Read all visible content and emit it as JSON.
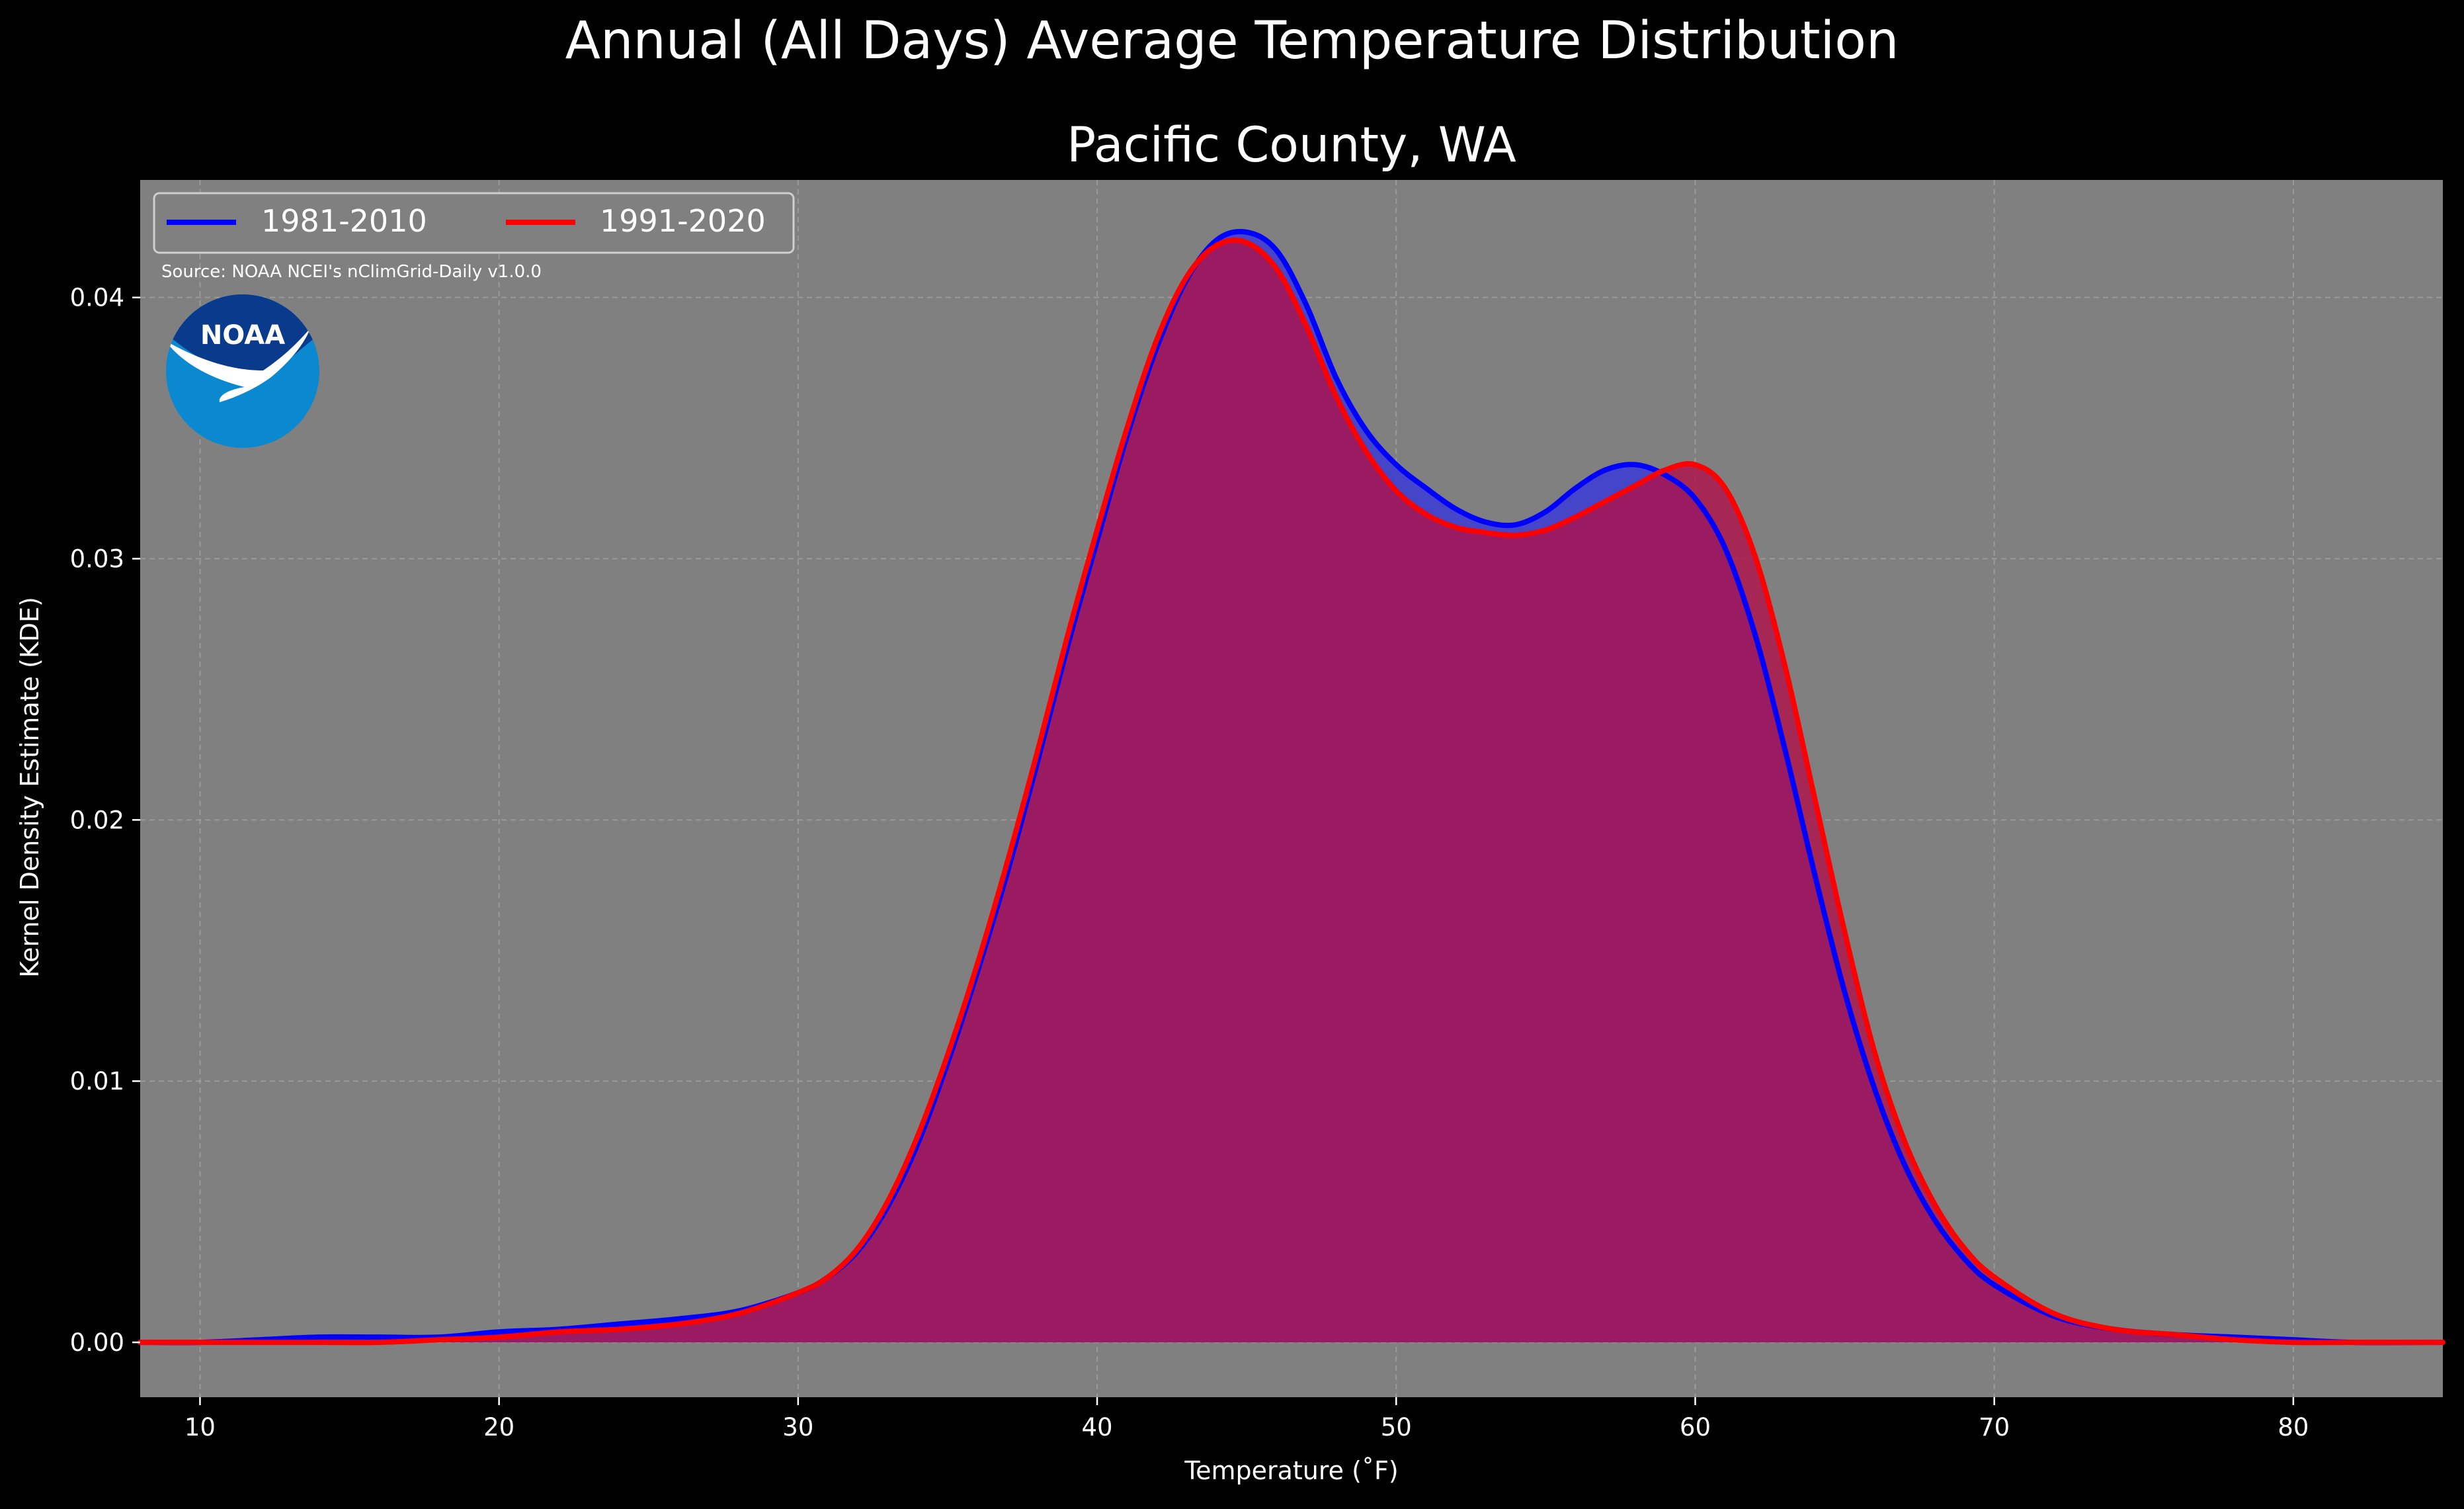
{
  "suptitle": "Annual (All Days) Average Temperature Distribution",
  "chart_data": {
    "type": "area",
    "title": "Pacific County, WA",
    "xlabel": "Temperature ($^\\circ$F)",
    "xlabel_display": "Temperature ($^\\circ$F)",
    "ylabel": "Kernel Density Estimate (KDE)",
    "xlim": [
      8,
      85
    ],
    "ylim": [
      -0.0021,
      0.0445
    ],
    "x_ticks": [
      10,
      20,
      30,
      40,
      50,
      60,
      70,
      80
    ],
    "y_ticks": [
      0.0,
      0.01,
      0.02,
      0.03,
      0.04
    ],
    "y_tick_labels": [
      "0.00",
      "0.01",
      "0.02",
      "0.03",
      "0.04"
    ],
    "grid": true,
    "legend_position": "top-left",
    "series": [
      {
        "name": "1981-2010",
        "color": "#0000ff",
        "fill_color": "#3b3bd6",
        "x": [
          8,
          10,
          12,
          14,
          16,
          18,
          20,
          22,
          24,
          26,
          28,
          30,
          31,
          32,
          33,
          34,
          35,
          36,
          37,
          38,
          39,
          40,
          41,
          42,
          43,
          44,
          45,
          46,
          47,
          48,
          49,
          50,
          51,
          52,
          53,
          54,
          55,
          56,
          57,
          58,
          59,
          60,
          61,
          62,
          63,
          64,
          65,
          66,
          67,
          68,
          69,
          70,
          72,
          74,
          76,
          78,
          80,
          82,
          85
        ],
        "y": [
          0.0,
          0.0,
          0.0001,
          0.0002,
          0.0002,
          0.0002,
          0.0004,
          0.0005,
          0.0007,
          0.0009,
          0.0012,
          0.0019,
          0.0025,
          0.0035,
          0.0052,
          0.0076,
          0.0107,
          0.0142,
          0.018,
          0.0222,
          0.0266,
          0.0307,
          0.0347,
          0.0381,
          0.0407,
          0.0422,
          0.0425,
          0.0418,
          0.0397,
          0.0369,
          0.0349,
          0.0336,
          0.0327,
          0.0319,
          0.0314,
          0.0313,
          0.0318,
          0.0327,
          0.0334,
          0.0336,
          0.0332,
          0.0323,
          0.0304,
          0.0271,
          0.0227,
          0.0179,
          0.0134,
          0.0097,
          0.0068,
          0.0047,
          0.0032,
          0.0022,
          0.001,
          0.0005,
          0.0003,
          0.0002,
          0.0001,
          0.0,
          0.0
        ]
      },
      {
        "name": "1991-2020",
        "color": "#ff0000",
        "fill_color": "#b01048",
        "x": [
          8,
          10,
          12,
          14,
          16,
          18,
          20,
          22,
          24,
          26,
          28,
          30,
          31,
          32,
          33,
          34,
          35,
          36,
          37,
          38,
          39,
          40,
          41,
          42,
          43,
          44,
          45,
          46,
          47,
          48,
          49,
          50,
          51,
          52,
          53,
          54,
          55,
          56,
          57,
          58,
          59,
          60,
          61,
          62,
          63,
          64,
          65,
          66,
          67,
          68,
          69,
          70,
          72,
          74,
          76,
          78,
          80,
          82,
          85
        ],
        "y": [
          0.0,
          0.0,
          0.0,
          0.0,
          0.0,
          0.0001,
          0.0002,
          0.0004,
          0.0005,
          0.0007,
          0.0011,
          0.0019,
          0.0025,
          0.0036,
          0.0054,
          0.0079,
          0.011,
          0.0145,
          0.0184,
          0.0226,
          0.027,
          0.0311,
          0.035,
          0.0384,
          0.0408,
          0.042,
          0.0421,
          0.0411,
          0.0389,
          0.0362,
          0.0341,
          0.0326,
          0.0317,
          0.0312,
          0.031,
          0.0309,
          0.0311,
          0.0316,
          0.0322,
          0.0328,
          0.0334,
          0.0336,
          0.0327,
          0.0301,
          0.0259,
          0.0208,
          0.0157,
          0.0111,
          0.0077,
          0.0053,
          0.0036,
          0.0025,
          0.0011,
          0.0005,
          0.0003,
          0.0001,
          0.0,
          0.0,
          0.0
        ]
      }
    ],
    "annotations": [
      "Source: NOAA NCEI's nClimGrid-Daily v1.0.0"
    ]
  },
  "logo": {
    "text": "NOAA",
    "colors": {
      "top": "#0a3a8c",
      "bottom": "#0a88d0",
      "bird": "#ffffff"
    }
  },
  "colors": {
    "figure_bg": "#000000",
    "axes_bg": "#808080",
    "text": "#ffffff",
    "grid": "#b0b0b0"
  }
}
